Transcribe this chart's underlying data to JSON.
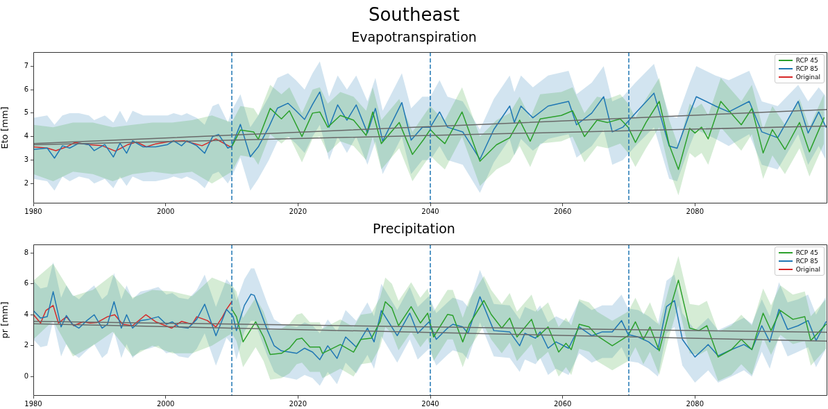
{
  "chart_data": [
    {
      "type": "line",
      "title": "Southeast",
      "subtitle": "Evapotranspiration",
      "ylabel": "Eto [mm]",
      "xlim": [
        1980,
        2100
      ],
      "ylim": [
        1.15,
        7.6
      ],
      "xticks": [
        1980,
        2000,
        2020,
        2040,
        2060,
        2080
      ],
      "yticks": [
        2,
        3,
        4,
        5,
        6,
        7
      ],
      "grid": false,
      "legend": "top right",
      "ref_lines": [
        {
          "axis": "x",
          "value": 2010,
          "color": "#1f77b4",
          "line_style": "dashed"
        },
        {
          "axis": "x",
          "value": 2040,
          "color": "#1f77b4",
          "line_style": "dashed"
        },
        {
          "axis": "x",
          "value": 2070,
          "color": "#1f77b4",
          "line_style": "dashed"
        }
      ],
      "series": [
        {
          "name": "RCP 45",
          "color": "#2ca02c",
          "x": [
            1980,
            1983,
            1986,
            1989,
            1992,
            1995,
            1998,
            2001,
            2004,
            2007,
            2010,
            2011.3,
            2013.3,
            2014,
            2015.8,
            2017.5,
            2018.7,
            2020.6,
            2022.2,
            2023.3,
            2024.5,
            2026.4,
            2028.4,
            2030.3,
            2031.3,
            2032.6,
            2035.3,
            2037.3,
            2039,
            2040,
            2041,
            2042.2,
            2044.8,
            2047.5,
            2050,
            2052,
            2053.5,
            2055.1,
            2056.6,
            2059.8,
            2061.5,
            2063.3,
            2065.2,
            2066.8,
            2068.7,
            2069.9,
            2071,
            2072.6,
            2074.6,
            2076.1,
            2077.5,
            2079.2,
            2080,
            2081,
            2082,
            2083.9,
            2087,
            2088.6,
            2090.3,
            2091.7,
            2093.6,
            2095.8,
            2097.3,
            2099.5
          ],
          "values": [
            null,
            null,
            null,
            null,
            null,
            null,
            null,
            null,
            null,
            null,
            3.57,
            4.28,
            4.2,
            3.88,
            5.2,
            4.75,
            5.1,
            4.0,
            5.0,
            5.05,
            4.4,
            4.9,
            4.7,
            4.05,
            5.05,
            3.7,
            4.6,
            3.24,
            3.88,
            4.3,
            4.0,
            3.7,
            5.05,
            2.95,
            3.65,
            3.95,
            4.7,
            3.8,
            4.75,
            4.9,
            5.1,
            4.0,
            4.7,
            4.6,
            4.75,
            4.4,
            3.75,
            4.6,
            5.5,
            3.65,
            2.6,
            4.35,
            4.15,
            4.4,
            3.9,
            5.5,
            4.5,
            5.2,
            3.3,
            4.3,
            3.45,
            4.6,
            3.35,
            4.8
          ],
          "lower": [
            2.4,
            2.1,
            2.5,
            2.4,
            2.1,
            2.4,
            2.5,
            2.4,
            2.5,
            2.0,
            2.5,
            3.2,
            3.1,
            2.8,
            4.1,
            3.7,
            4.0,
            2.9,
            3.9,
            4.0,
            3.3,
            3.8,
            3.6,
            3.0,
            4.0,
            2.6,
            3.5,
            2.1,
            2.8,
            3.2,
            2.9,
            2.6,
            4.0,
            1.9,
            2.6,
            2.9,
            3.6,
            2.7,
            3.7,
            3.8,
            4.0,
            2.9,
            3.6,
            3.5,
            3.7,
            3.3,
            2.7,
            3.5,
            4.4,
            2.6,
            1.5,
            3.3,
            3.1,
            3.3,
            2.8,
            4.4,
            3.4,
            4.1,
            2.2,
            3.2,
            2.4,
            3.5,
            2.3,
            3.7
          ],
          "upper": [
            4.5,
            4.4,
            4.6,
            4.6,
            4.4,
            4.5,
            4.6,
            4.6,
            4.7,
            4.9,
            4.6,
            5.3,
            5.2,
            4.9,
            6.2,
            5.8,
            6.1,
            5.0,
            6.0,
            6.1,
            5.4,
            5.9,
            5.7,
            5.1,
            6.1,
            4.7,
            5.6,
            4.2,
            4.9,
            5.3,
            5.0,
            4.7,
            6.1,
            4.0,
            4.7,
            5.0,
            5.7,
            4.8,
            5.8,
            5.9,
            6.1,
            5.0,
            5.7,
            5.6,
            5.8,
            5.4,
            4.8,
            5.6,
            6.5,
            4.7,
            3.6,
            5.4,
            5.2,
            5.4,
            4.9,
            6.5,
            5.5,
            6.2,
            4.3,
            5.3,
            4.5,
            5.6,
            4.4,
            5.8
          ]
        },
        {
          "name": "RCP 85",
          "color": "#1f77b4",
          "x": [
            1980,
            1982.1,
            1983.2,
            1984.4,
            1985.5,
            1986.9,
            1988.4,
            1989.2,
            1990.8,
            1992.1,
            1993.1,
            1994.1,
            1995,
            1996.6,
            1998.5,
            2000.3,
            2001.2,
            2002.4,
            2003.2,
            2004.7,
            2005.9,
            2007.1,
            2008,
            2009.4,
            2010,
            2011.3,
            2012.8,
            2014,
            2015.6,
            2016.9,
            2018.5,
            2019.7,
            2021,
            2022.2,
            2023.3,
            2024.7,
            2026,
            2027.4,
            2028.8,
            2030.5,
            2031.7,
            2032.8,
            2035.7,
            2037.1,
            2038.8,
            2040,
            2041.4,
            2042.6,
            2044.9,
            2047.5,
            2049.6,
            2052,
            2052.7,
            2053.7,
            2055.5,
            2057.8,
            2060.9,
            2062.1,
            2064.4,
            2066.2,
            2067.5,
            2069.1,
            2071,
            2073.8,
            2076.1,
            2077.3,
            2079.2,
            2080.2,
            2083.1,
            2085.1,
            2088.2,
            2090.1,
            2092.5,
            2095.6,
            2097.1,
            2098.7,
            2099.8
          ],
          "values": [
            3.45,
            3.51,
            3.08,
            3.61,
            3.51,
            3.72,
            3.66,
            3.4,
            3.66,
            3.13,
            3.72,
            3.29,
            3.82,
            3.56,
            3.56,
            3.66,
            3.82,
            3.61,
            3.82,
            3.61,
            3.29,
            4.0,
            4.09,
            3.51,
            3.6,
            4.52,
            3.14,
            3.56,
            4.41,
            5.21,
            5.42,
            5.1,
            4.73,
            5.37,
            5.9,
            4.4,
            5.35,
            4.7,
            5.35,
            4.15,
            5.2,
            3.8,
            5.45,
            3.85,
            4.4,
            4.4,
            5.05,
            4.4,
            4.2,
            3.03,
            4.3,
            5.3,
            4.6,
            5.3,
            4.8,
            5.3,
            5.5,
            4.5,
            5.0,
            5.7,
            4.2,
            4.4,
            5.0,
            5.85,
            3.6,
            3.5,
            5.0,
            5.7,
            5.3,
            5.05,
            5.5,
            4.2,
            3.95,
            5.5,
            4.15,
            5.05,
            4.4
          ],
          "lower": [
            2.2,
            2.1,
            1.7,
            2.3,
            2.1,
            2.3,
            2.2,
            2.0,
            2.2,
            1.8,
            2.3,
            1.9,
            2.3,
            2.1,
            2.1,
            2.2,
            2.3,
            2.2,
            2.3,
            2.1,
            1.8,
            2.4,
            2.5,
            2.0,
            2.3,
            3.1,
            1.7,
            2.2,
            3.0,
            3.8,
            4.0,
            3.7,
            3.3,
            4.0,
            4.5,
            3.0,
            4.0,
            3.3,
            4.0,
            2.8,
            3.8,
            2.4,
            4.0,
            2.4,
            3.0,
            3.0,
            3.6,
            3.0,
            2.8,
            1.6,
            2.9,
            3.9,
            3.2,
            3.9,
            3.4,
            3.9,
            4.1,
            3.1,
            3.6,
            4.3,
            2.8,
            3.0,
            3.6,
            4.4,
            2.2,
            2.1,
            3.6,
            4.3,
            3.9,
            3.6,
            4.1,
            2.8,
            2.6,
            4.1,
            2.8,
            3.6,
            3.0
          ],
          "upper": [
            4.8,
            4.9,
            4.5,
            4.9,
            5.0,
            5.0,
            4.9,
            4.7,
            4.9,
            4.6,
            5.1,
            4.6,
            5.1,
            4.9,
            4.9,
            4.9,
            5.0,
            4.9,
            5.0,
            4.8,
            4.5,
            5.3,
            5.4,
            4.6,
            5.1,
            5.8,
            4.4,
            4.9,
            5.7,
            6.5,
            6.7,
            6.4,
            6.0,
            6.7,
            7.2,
            5.7,
            6.6,
            6.0,
            6.6,
            5.5,
            6.5,
            5.1,
            6.7,
            5.2,
            5.7,
            5.7,
            6.4,
            5.7,
            5.5,
            4.3,
            5.6,
            6.6,
            5.9,
            6.6,
            6.1,
            6.6,
            6.8,
            5.8,
            6.3,
            7.0,
            5.5,
            5.7,
            6.3,
            7.1,
            4.9,
            4.8,
            6.3,
            7.0,
            6.6,
            6.4,
            6.8,
            5.5,
            5.3,
            6.2,
            5.5,
            6.1,
            5.7
          ]
        },
        {
          "name": "Original",
          "color": "#d62728",
          "x": [
            1980,
            1982.1,
            1983.4,
            1985,
            1986.3,
            1988.4,
            1990.4,
            1992.4,
            1994.3,
            1995.6,
            1997.1,
            1998.5,
            2000.8,
            2002.8,
            2005.5,
            2007.6,
            2010
          ],
          "values": [
            3.56,
            3.51,
            3.4,
            3.56,
            3.75,
            3.66,
            3.61,
            3.38,
            3.66,
            3.77,
            3.56,
            3.69,
            3.8,
            3.82,
            3.61,
            3.9,
            3.53
          ]
        },
        {
          "type": "line",
          "color": "#696969",
          "x": [
            1980,
            2100
          ],
          "values": [
            3.7,
            5.15
          ]
        },
        {
          "type": "line",
          "color": "#696969",
          "x": [
            1980,
            2100
          ],
          "values": [
            3.65,
            4.45
          ]
        }
      ]
    },
    {
      "type": "line",
      "title": "Precipitation",
      "ylabel": "pr [mm]",
      "xlim": [
        1980,
        2100
      ],
      "ylim": [
        -1.25,
        8.55
      ],
      "xticks": [
        1980,
        2000,
        2020,
        2040,
        2060,
        2080
      ],
      "yticks": [
        0,
        2,
        4,
        6,
        8
      ],
      "grid": false,
      "legend": "top right",
      "ref_lines": [
        {
          "axis": "x",
          "value": 2010,
          "color": "#1f77b4",
          "line_style": "dashed"
        },
        {
          "axis": "x",
          "value": 2040,
          "color": "#1f77b4",
          "line_style": "dashed"
        },
        {
          "axis": "x",
          "value": 2070,
          "color": "#1f77b4",
          "line_style": "dashed"
        }
      ],
      "series": [
        {
          "name": "RCP 45",
          "color": "#2ca02c",
          "x": [
            1980,
            1983,
            1986,
            1989,
            1992,
            1995,
            1998,
            2001,
            2004,
            2007,
            2010,
            2010.7,
            2011.7,
            2013.6,
            2014.8,
            2015.8,
            2017.5,
            2018.7,
            2019.8,
            2020.6,
            2021.8,
            2023.3,
            2023.7,
            2026.4,
            2028.4,
            2029.5,
            2031.1,
            2032.4,
            2033.2,
            2034.2,
            2035.2,
            2037.1,
            2038.5,
            2039.6,
            2040.5,
            2042.6,
            2043.4,
            2044.9,
            2045.9,
            2048.1,
            2049.2,
            2050.8,
            2052,
            2053.1,
            2055.3,
            2056.2,
            2057.8,
            2059.4,
            2060.5,
            2061.3,
            2062.5,
            2064,
            2065.2,
            2067.5,
            2069.9,
            2071,
            2072.2,
            2073.2,
            2074.6,
            2076.1,
            2077.5,
            2079.2,
            2080.6,
            2081.8,
            2083.5,
            2085.5,
            2087,
            2088.6,
            2090.3,
            2091.5,
            2092.9,
            2094.8,
            2096.6,
            2097.5,
            2099.8
          ],
          "values": [
            null,
            null,
            null,
            null,
            null,
            null,
            null,
            null,
            null,
            null,
            4.35,
            3.87,
            2.24,
            3.54,
            2.56,
            1.42,
            1.5,
            1.83,
            2.4,
            2.48,
            1.91,
            1.91,
            1.5,
            2.07,
            1.58,
            2.4,
            2.48,
            3.54,
            4.84,
            4.43,
            3.29,
            4.52,
            3.46,
            4.1,
            2.56,
            4.02,
            3.95,
            2.24,
            3.38,
            4.92,
            4.02,
            3.13,
            3.78,
            2.56,
            3.7,
            2.56,
            3.21,
            1.58,
            2.15,
            1.74,
            3.38,
            3.21,
            2.64,
            1.99,
            2.64,
            3.54,
            2.4,
            3.21,
            1.66,
            4.19,
            6.24,
            3.13,
            2.97,
            3.29,
            1.26,
            1.74,
            2.4,
            1.74,
            4.1,
            2.97,
            4.27,
            3.7,
            3.87,
            2.32,
            3.38
          ],
          "lower": [
            2.4,
            3.6,
            1.3,
            2.0,
            2.9,
            1.3,
            2.0,
            1.5,
            1.5,
            2.0,
            2.8,
            2.3,
            0.6,
            1.9,
            1.0,
            -0.2,
            -0.1,
            0.2,
            0.8,
            0.9,
            0.3,
            0.3,
            -0.1,
            0.5,
            0.0,
            0.8,
            0.9,
            1.9,
            3.2,
            2.8,
            1.7,
            2.9,
            1.9,
            2.5,
            1.0,
            2.4,
            2.4,
            0.6,
            1.8,
            3.3,
            2.4,
            1.5,
            2.2,
            1.0,
            2.1,
            1.0,
            1.6,
            0.0,
            0.6,
            0.1,
            1.8,
            1.6,
            1.0,
            0.4,
            1.0,
            1.9,
            0.8,
            1.6,
            0.1,
            2.6,
            4.6,
            1.5,
            1.4,
            1.7,
            -0.3,
            0.1,
            0.8,
            0.1,
            2.5,
            1.4,
            2.7,
            2.1,
            2.3,
            0.7,
            1.8
          ],
          "upper": [
            6.2,
            7.3,
            5.2,
            5.6,
            6.6,
            5.1,
            5.6,
            5.5,
            5.2,
            6.4,
            5.9,
            5.5,
            3.8,
            5.1,
            4.2,
            3.0,
            3.1,
            3.4,
            4.0,
            4.1,
            3.5,
            3.5,
            3.1,
            3.7,
            3.2,
            4.0,
            4.1,
            5.1,
            6.4,
            6.0,
            4.9,
            6.1,
            5.1,
            5.7,
            4.2,
            5.6,
            5.6,
            3.8,
            5.0,
            6.5,
            5.6,
            4.7,
            5.4,
            4.2,
            5.3,
            4.2,
            4.8,
            3.2,
            3.8,
            3.3,
            5.0,
            4.8,
            4.2,
            3.6,
            4.2,
            5.1,
            4.0,
            4.8,
            3.3,
            5.8,
            7.8,
            4.7,
            4.6,
            4.9,
            2.9,
            3.3,
            4.0,
            3.3,
            5.7,
            4.6,
            5.9,
            5.3,
            5.5,
            3.9,
            5.0
          ]
        },
        {
          "name": "RCP 85",
          "color": "#1f77b4",
          "x": [
            1980,
            1981.1,
            1982.1,
            1983,
            1984.2,
            1985,
            1985.9,
            1986.9,
            1988.1,
            1989.2,
            1990.4,
            1991.2,
            1992.2,
            1993.3,
            1994.1,
            1995,
            1996.2,
            1997.4,
            1998.9,
            2000.1,
            2001,
            2002,
            2003.4,
            2004.7,
            2005.9,
            2007.6,
            2009.2,
            2010.2,
            2010.7,
            2011.9,
            2012.9,
            2013.4,
            2014.2,
            2015.4,
            2016.4,
            2017.5,
            2018.7,
            2019.8,
            2021,
            2022.2,
            2023.3,
            2024.5,
            2025.9,
            2027.2,
            2028.8,
            2030.5,
            2031.5,
            2032.6,
            2035,
            2036.9,
            2038.1,
            2039.8,
            2040.9,
            2042.6,
            2043.4,
            2044.9,
            2045.7,
            2047.5,
            2049.6,
            2052,
            2053.5,
            2054.3,
            2055.9,
            2056.6,
            2057.8,
            2059,
            2060.9,
            2062.5,
            2064.4,
            2066,
            2067.5,
            2068.9,
            2069.9,
            2071.4,
            2073,
            2074.4,
            2075.7,
            2076.9,
            2078.1,
            2080,
            2082,
            2083.5,
            2085.5,
            2087.4,
            2088.6,
            2090.1,
            2091.3,
            2092.7,
            2094,
            2095.6,
            2097.1,
            2098.3,
            2099.8
          ],
          "values": [
            4.27,
            3.78,
            3.87,
            5.49,
            3.21,
            3.95,
            3.38,
            3.13,
            3.62,
            4.0,
            3.13,
            3.38,
            4.84,
            3.13,
            4.0,
            3.13,
            3.62,
            3.7,
            3.87,
            3.38,
            3.54,
            3.21,
            3.13,
            3.7,
            4.68,
            2.64,
            4.35,
            3.87,
            2.97,
            4.6,
            5.33,
            5.25,
            4.35,
            2.97,
            1.99,
            1.66,
            1.58,
            1.5,
            1.83,
            1.58,
            1.09,
            1.99,
            1.17,
            2.56,
            1.91,
            3.13,
            2.24,
            4.27,
            2.64,
            4.1,
            2.8,
            3.54,
            2.4,
            3.13,
            3.38,
            3.21,
            2.8,
            5.17,
            2.97,
            2.89,
            1.99,
            2.8,
            2.48,
            2.89,
            1.83,
            2.24,
            1.83,
            3.21,
            2.64,
            2.89,
            2.89,
            3.62,
            2.72,
            2.56,
            2.24,
            1.74,
            4.52,
            4.92,
            2.4,
            1.26,
            2.07,
            1.34,
            1.74,
            2.07,
            1.74,
            3.29,
            2.24,
            4.35,
            3.05,
            3.29,
            3.62,
            2.32,
            3.54
          ],
          "lower": [
            2.4,
            1.9,
            2.0,
            3.6,
            1.3,
            2.1,
            1.5,
            1.2,
            1.7,
            2.1,
            1.2,
            1.5,
            2.9,
            1.2,
            2.1,
            1.2,
            1.7,
            1.8,
            2.0,
            1.5,
            1.6,
            1.3,
            1.2,
            1.8,
            2.8,
            0.7,
            2.5,
            2.0,
            1.1,
            2.9,
            3.6,
            3.6,
            2.7,
            1.3,
            0.3,
            0.0,
            -0.1,
            -0.2,
            0.1,
            -0.1,
            -0.6,
            0.3,
            -0.5,
            0.9,
            0.2,
            1.4,
            0.5,
            2.6,
            0.9,
            2.4,
            1.1,
            1.8,
            0.7,
            1.4,
            1.7,
            1.5,
            1.1,
            3.5,
            1.3,
            1.2,
            0.3,
            1.1,
            0.8,
            1.2,
            0.1,
            0.5,
            0.1,
            1.5,
            0.9,
            1.2,
            1.2,
            1.9,
            1.0,
            0.9,
            0.5,
            0.0,
            2.8,
            3.2,
            0.7,
            -0.4,
            0.4,
            -0.4,
            0.0,
            0.4,
            0.0,
            1.6,
            0.5,
            2.6,
            1.3,
            1.6,
            1.9,
            0.6,
            1.8
          ],
          "upper": [
            6.2,
            5.7,
            5.8,
            7.4,
            5.1,
            5.9,
            5.3,
            5.0,
            5.5,
            5.9,
            5.0,
            5.3,
            6.7,
            5.0,
            5.9,
            5.0,
            5.5,
            5.6,
            5.8,
            5.3,
            5.4,
            5.1,
            5.0,
            5.6,
            6.6,
            4.5,
            6.3,
            5.8,
            4.9,
            6.3,
            7.0,
            7.0,
            6.1,
            4.7,
            3.7,
            3.4,
            3.3,
            3.2,
            3.5,
            3.3,
            2.8,
            3.7,
            2.9,
            4.3,
            3.6,
            4.8,
            3.9,
            6.0,
            4.3,
            5.8,
            4.5,
            5.2,
            4.1,
            4.8,
            5.1,
            4.9,
            4.5,
            6.9,
            4.7,
            4.6,
            3.7,
            4.5,
            4.2,
            4.6,
            3.5,
            3.9,
            3.5,
            4.9,
            4.3,
            4.6,
            4.6,
            5.3,
            4.4,
            4.3,
            3.9,
            3.4,
            6.2,
            6.6,
            4.1,
            3.0,
            3.8,
            3.0,
            3.4,
            3.8,
            3.4,
            5.0,
            3.9,
            6.1,
            4.8,
            5.0,
            5.3,
            4.0,
            5.2
          ]
        },
        {
          "name": "Original",
          "color": "#d62728",
          "x": [
            1980,
            1981.1,
            1981.9,
            1983,
            1983.8,
            1985,
            1986.1,
            1987.5,
            1988.6,
            1989.6,
            1991.2,
            1992.3,
            1993.5,
            1995,
            1997,
            1998.5,
            2000.9,
            2002.4,
            2004,
            2004.7,
            2006.3,
            2007.6,
            2008.6,
            2009.2,
            2010
          ],
          "values": [
            4.02,
            3.46,
            4.27,
            4.6,
            3.46,
            3.87,
            3.29,
            3.54,
            3.46,
            3.49,
            3.87,
            4.0,
            3.38,
            3.29,
            4.0,
            3.54,
            3.13,
            3.57,
            3.38,
            3.87,
            3.62,
            3.21,
            3.87,
            4.35,
            4.84
          ]
        },
        {
          "type": "line",
          "color": "#696969",
          "x": [
            1980,
            2100
          ],
          "values": [
            3.57,
            2.86
          ]
        },
        {
          "type": "line",
          "color": "#696969",
          "x": [
            1980,
            2100
          ],
          "values": [
            3.41,
            2.29
          ]
        }
      ]
    }
  ]
}
